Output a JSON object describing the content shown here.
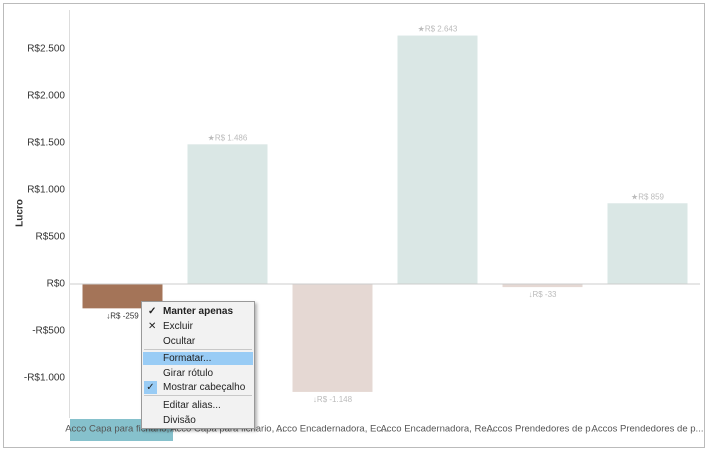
{
  "chart_data": {
    "type": "bar",
    "y_label": "Lucro",
    "categories": [
      "Acco Capa para fichario, ...",
      "Acco Capa para fichario, ...",
      "Acco Encadernadora, Ec...",
      "Acco Encadernadora, Re...",
      "Accos Prendedores de p...",
      "Accos Prendedores de p..."
    ],
    "values": [
      -259,
      1486,
      -1148,
      2643,
      -33,
      859
    ],
    "value_labels": [
      "↓R$ -259",
      "★R$ 1.486",
      "↓R$ -1.148",
      "★R$ 2.643",
      "↓R$ -33",
      "★R$ 859"
    ],
    "colors": [
      "#a47458",
      "#dae7e5",
      "#e5d8d3",
      "#dae7e5",
      "#e5d8d3",
      "#dae7e5"
    ],
    "ylim": [
      -1400,
      2900
    ],
    "yticks": [
      {
        "value": -1000,
        "label": "-R$1.000"
      },
      {
        "value": -500,
        "label": "-R$500"
      },
      {
        "value": 0,
        "label": "R$0"
      },
      {
        "value": 500,
        "label": "R$500"
      },
      {
        "value": 1000,
        "label": "R$1.000"
      },
      {
        "value": 1500,
        "label": "R$1.500"
      },
      {
        "value": 2000,
        "label": "R$2.000"
      },
      {
        "value": 2500,
        "label": "R$2.500"
      }
    ]
  },
  "context_menu": [
    "Manter apenas",
    "Excluir",
    "Ocultar",
    "Formatar...",
    "Girar rótulo",
    "Mostrar cabeçalho",
    "Editar alias...",
    "Divisão"
  ]
}
